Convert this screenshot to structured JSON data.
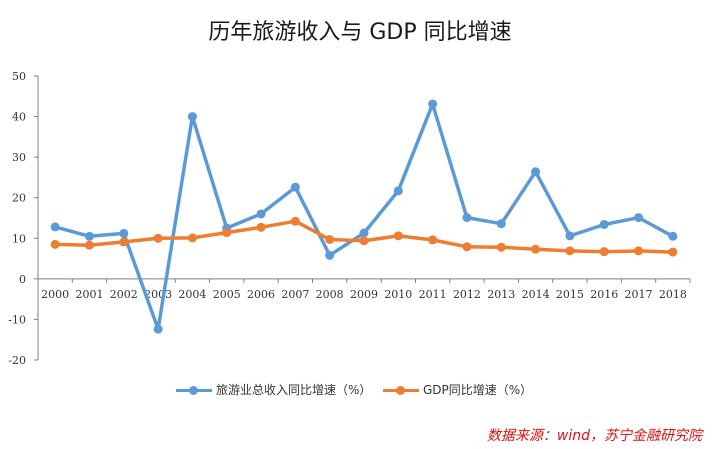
{
  "chart_data": {
    "type": "line",
    "title": "历年旅游收入与 GDP 同比增速",
    "x": [
      "2000",
      "2001",
      "2002",
      "2003",
      "2004",
      "2005",
      "2006",
      "2007",
      "2008",
      "2009",
      "2010",
      "2011",
      "2012",
      "2013",
      "2014",
      "2015",
      "2016",
      "2017",
      "2018"
    ],
    "yticks": [
      "50",
      "40",
      "30",
      "20",
      "10",
      "0",
      "-10",
      "-20"
    ],
    "ylim": [
      -20,
      50
    ],
    "series": [
      {
        "name": "旅游业总收入同比增速（%）",
        "color": "#5b9bd5",
        "values": [
          12.8,
          10.5,
          11.2,
          -12.4,
          40.0,
          12.5,
          16.0,
          22.6,
          5.8,
          11.3,
          21.7,
          43.1,
          15.1,
          13.6,
          26.4,
          10.6,
          13.4,
          15.1,
          10.5
        ]
      },
      {
        "name": "GDP同比增速（%）",
        "color": "#ed7d31",
        "values": [
          8.5,
          8.3,
          9.1,
          10.0,
          10.1,
          11.4,
          12.7,
          14.2,
          9.7,
          9.4,
          10.6,
          9.6,
          7.9,
          7.8,
          7.3,
          6.9,
          6.7,
          6.9,
          6.6
        ]
      }
    ],
    "grid": false,
    "legend_position": "bottom"
  },
  "source": "数据来源：wind，苏宁金融研究院"
}
